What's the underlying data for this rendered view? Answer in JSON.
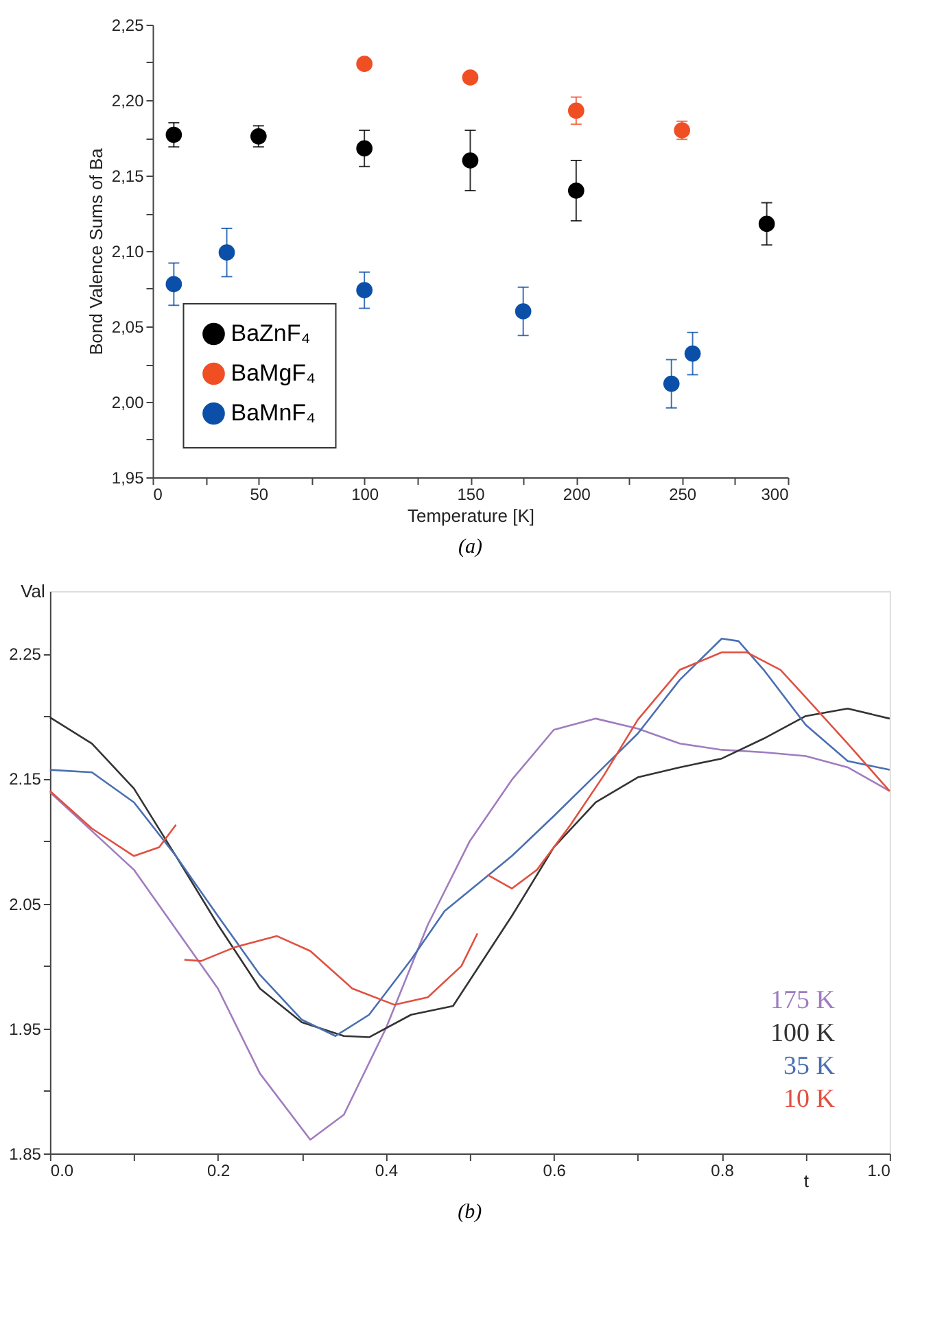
{
  "chart_data": [
    {
      "type": "scatter",
      "title": "(a)",
      "xlabel": "Temperature [K]",
      "ylabel": "Bond Valence Sums of Ba",
      "xlim": [
        0,
        300
      ],
      "xticks": [
        0,
        {
          "value": 25,
          "label": null
        },
        50,
        {
          "value": 75,
          "label": null
        },
        100,
        {
          "value": 125,
          "label": null
        },
        150,
        {
          "value": 175,
          "label": null
        },
        200,
        {
          "value": 225,
          "label": null
        },
        250,
        {
          "value": 275,
          "label": null
        },
        300
      ],
      "ylim": [
        1.95,
        2.25
      ],
      "yticks": [
        {
          "value": 1.95,
          "label": "1,95"
        },
        {
          "value": 1.975,
          "label": null
        },
        {
          "value": 2.0,
          "label": "2,00"
        },
        {
          "value": 2.025,
          "label": null
        },
        {
          "value": 2.05,
          "label": "2,05"
        },
        {
          "value": 2.075,
          "label": null
        },
        {
          "value": 2.1,
          "label": "2,10"
        },
        {
          "value": 2.125,
          "label": null
        },
        {
          "value": 2.15,
          "label": "2,15"
        },
        {
          "value": 2.175,
          "label": null
        },
        {
          "value": 2.2,
          "label": "2,20"
        },
        {
          "value": 2.225,
          "label": null
        },
        {
          "value": 2.25,
          "label": "2,25"
        }
      ],
      "grid": false,
      "legend": "bottom left",
      "marker": "circle",
      "series": [
        {
          "name": "BaZnF₄",
          "color": "#000000",
          "x": [
            10,
            50,
            100,
            150,
            200,
            290
          ],
          "values": [
            2.177,
            2.176,
            2.168,
            2.16,
            2.14,
            2.118
          ],
          "errors": [
            0.008,
            0.007,
            0.012,
            0.02,
            0.02,
            0.014
          ]
        },
        {
          "name": "BaMgF₄",
          "color": "#f04e23",
          "x": [
            100,
            150,
            200,
            250
          ],
          "values": [
            2.224,
            2.215,
            2.193,
            2.18
          ],
          "errors": [
            null,
            null,
            0.009,
            0.006
          ]
        },
        {
          "name": "BaMnF₄",
          "color": "#0b4fa8",
          "x": [
            10,
            35,
            100,
            175,
            245,
            255
          ],
          "values": [
            2.078,
            2.099,
            2.074,
            2.06,
            2.012,
            2.032
          ],
          "errors": [
            0.014,
            0.016,
            0.012,
            0.016,
            0.016,
            0.014
          ]
        }
      ]
    },
    {
      "type": "line",
      "title": "(b)",
      "xlabel": "t",
      "ylabel": "Val",
      "xlim": [
        0,
        1
      ],
      "xticks": [
        {
          "value": 0,
          "label": "0.0"
        },
        {
          "value": 0.1,
          "label": null
        },
        0.2,
        {
          "value": 0.3,
          "label": null
        },
        0.4,
        {
          "value": 0.5,
          "label": null
        },
        0.6,
        {
          "value": 0.7,
          "label": null
        },
        0.8,
        {
          "value": 0.9,
          "label": null
        },
        {
          "value": 1,
          "label": "1.0"
        }
      ],
      "ylim": [
        1.85,
        2.3
      ],
      "yticks": [
        1.85,
        {
          "value": 1.9,
          "label": null
        },
        1.95,
        {
          "value": 2.0,
          "label": null
        },
        2.05,
        {
          "value": 2.1,
          "label": null
        },
        2.15,
        {
          "value": 2.2,
          "label": null
        },
        2.25
      ],
      "grid": false,
      "legend": "bottom right",
      "marker": "none",
      "line_style": "solid",
      "series": [
        {
          "name": "175 K",
          "color": "#a07cc0",
          "x": [
            0,
            0.1,
            0.2,
            0.25,
            0.31,
            0.35,
            0.4,
            0.45,
            0.5,
            0.55,
            0.6,
            0.65,
            0.7,
            0.75,
            0.8,
            0.85,
            0.9,
            0.95,
            1.0
          ],
          "values": [
            2.139,
            2.077,
            1.982,
            1.914,
            1.861,
            1.881,
            1.95,
            2.033,
            2.1,
            2.149,
            2.189,
            2.198,
            2.19,
            2.178,
            2.173,
            2.171,
            2.168,
            2.159,
            2.14
          ]
        },
        {
          "name": "100 K",
          "color": "#333333",
          "x": [
            0,
            0.05,
            0.1,
            0.15,
            0.2,
            0.25,
            0.3,
            0.35,
            0.38,
            0.43,
            0.48,
            0.55,
            0.6,
            0.65,
            0.7,
            0.75,
            0.8,
            0.85,
            0.9,
            0.95,
            1.0
          ],
          "values": [
            2.199,
            2.178,
            2.142,
            2.088,
            2.033,
            1.982,
            1.955,
            1.944,
            1.943,
            1.961,
            1.968,
            2.04,
            2.095,
            2.131,
            2.151,
            2.159,
            2.166,
            2.182,
            2.2,
            2.206,
            2.198
          ]
        },
        {
          "name": "35 K",
          "color": "#4a6fb0",
          "x": [
            0,
            0.05,
            0.1,
            0.15,
            0.2,
            0.25,
            0.3,
            0.34,
            0.38,
            0.43,
            0.47,
            0.55,
            0.6,
            0.65,
            0.7,
            0.75,
            0.8,
            0.82,
            0.85,
            0.9,
            0.95,
            1.0
          ],
          "values": [
            2.157,
            2.155,
            2.131,
            2.088,
            2.04,
            1.993,
            1.957,
            1.944,
            1.961,
            2.005,
            2.044,
            2.088,
            2.12,
            2.153,
            2.186,
            2.229,
            2.262,
            2.26,
            2.237,
            2.193,
            2.164,
            2.157
          ]
        },
        {
          "name": "10 K",
          "color": "#e05040",
          "x": [
            0,
            0.05,
            0.1,
            0.13,
            0.15,
            0.155,
            0.16,
            0.18,
            0.22,
            0.27,
            0.31,
            0.36,
            0.41,
            0.45,
            0.49,
            0.509,
            0.515,
            0.521,
            0.55,
            0.58,
            0.62,
            0.66,
            0.7,
            0.75,
            0.8,
            0.83,
            0.87,
            0.9,
            0.95,
            1.0
          ],
          "values": [
            2.14,
            2.11,
            2.088,
            2.095,
            2.113,
            null,
            2.005,
            2.004,
            2.015,
            2.024,
            2.012,
            1.982,
            1.969,
            1.975,
            2.0,
            2.026,
            null,
            2.073,
            2.062,
            2.077,
            2.113,
            2.153,
            2.197,
            2.237,
            2.251,
            2.251,
            2.237,
            2.215,
            2.178,
            2.14
          ]
        }
      ]
    }
  ]
}
